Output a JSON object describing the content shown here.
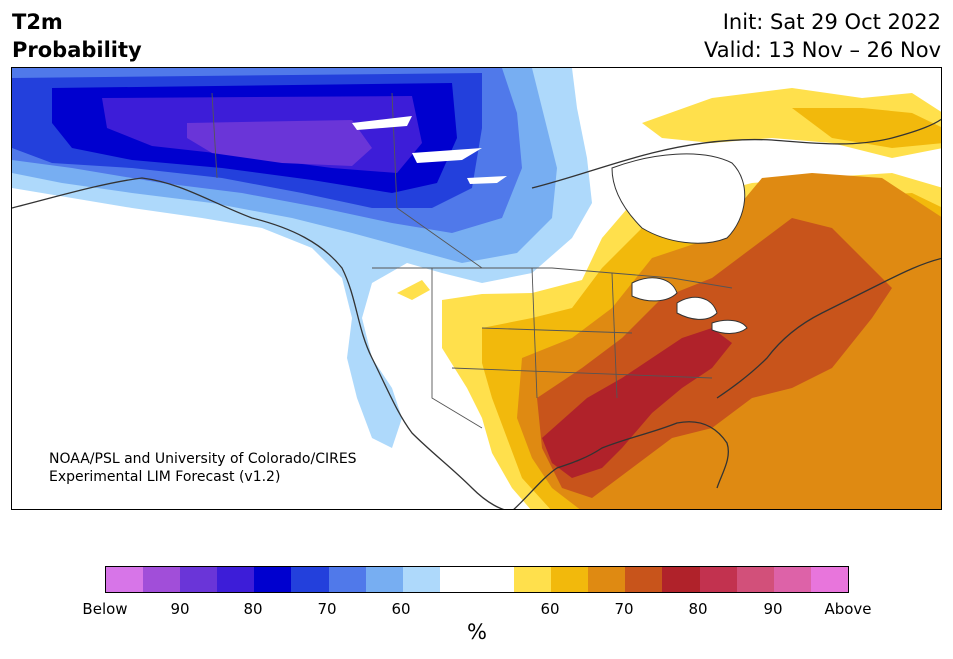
{
  "header": {
    "variable": "T2m",
    "product": "Probability",
    "init": "Init: Sat 29 Oct 2022",
    "valid": "Valid: 13 Nov – 26 Nov"
  },
  "credit": {
    "line1": "NOAA/PSL and University of Colorado/CIRES",
    "line2": "Experimental LIM Forecast (v1.2)"
  },
  "colorbar": {
    "below_colors": [
      "#d775e8",
      "#a14ed9",
      "#6a35d8",
      "#3d1dd8",
      "#0000cf",
      "#2340dc",
      "#5079ea",
      "#77aef2",
      "#aed9fb"
    ],
    "neutral_color": "#ffffff",
    "above_colors": [
      "#ffe04c",
      "#f2b90c",
      "#df8a12",
      "#c8541b",
      "#b0222a",
      "#c2324f",
      "#d2507a",
      "#dd62a8",
      "#e875dc"
    ],
    "tick_labels": [
      "Below",
      "90",
      "80",
      "70",
      "60",
      "60",
      "70",
      "80",
      "90",
      "Above"
    ],
    "unit": "%"
  },
  "map": {
    "region": "North America",
    "regions": [
      {
        "name": "Alaska / Yukon / western Canada",
        "category": "below",
        "peak": "80-90"
      },
      {
        "name": "Pacific Northwest coast",
        "category": "below",
        "peak": "50-60"
      },
      {
        "name": "Central Plains",
        "category": "above",
        "peak": "60-70"
      },
      {
        "name": "Texas / Lower Mississippi / Tennessee Valley",
        "category": "above",
        "peak": "80-90"
      },
      {
        "name": "Great Lakes / Northeast / Ontario / Quebec",
        "category": "above",
        "peak": "70-80"
      },
      {
        "name": "Greenland / Baffin",
        "category": "above",
        "peak": "50-60"
      }
    ]
  }
}
